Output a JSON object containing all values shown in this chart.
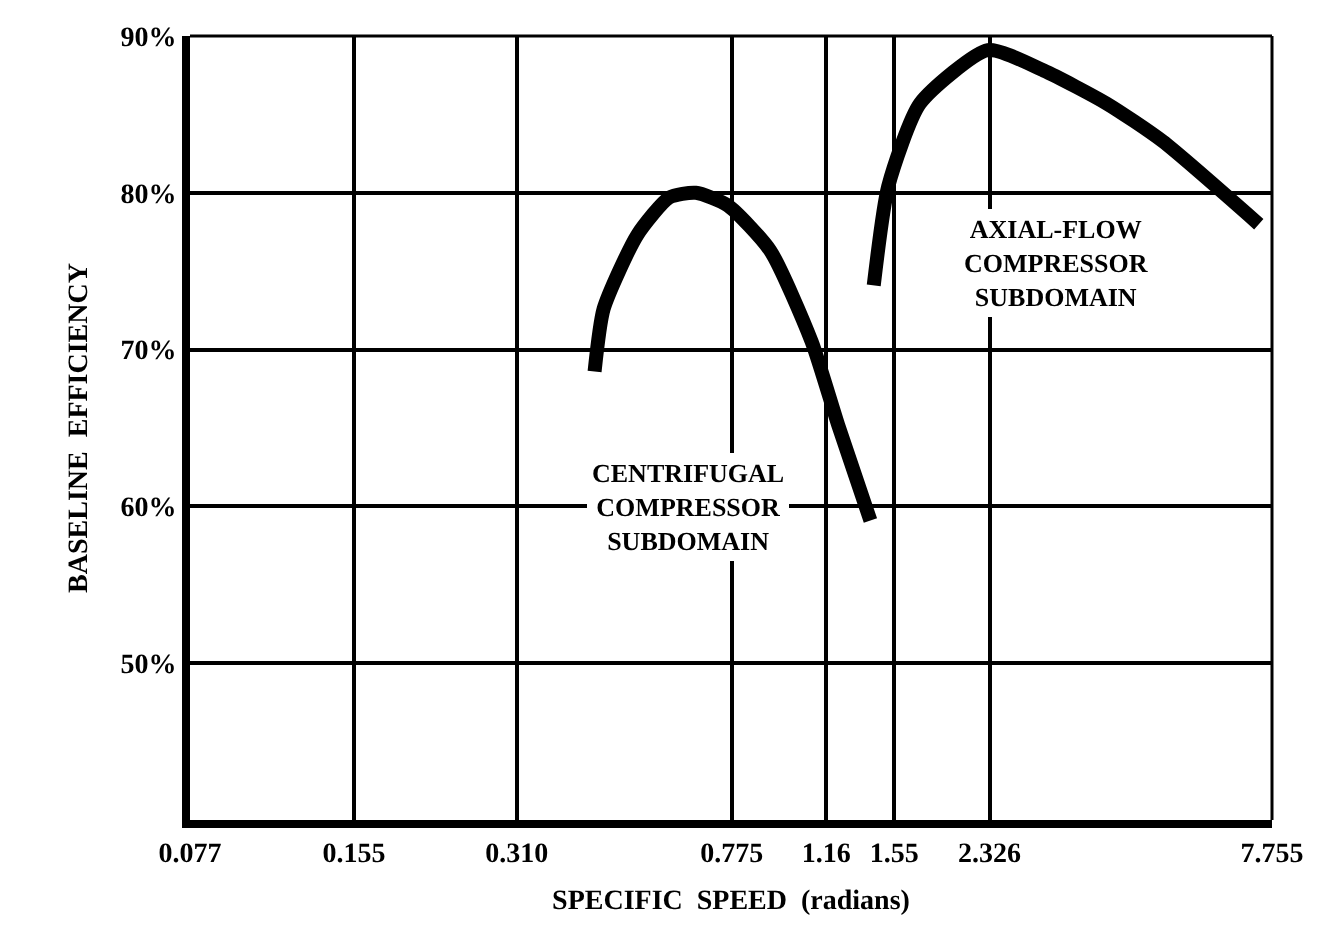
{
  "chart_data": {
    "type": "line",
    "xlabel": "SPECIFIC  SPEED  (radians)",
    "ylabel": "BASELINE  EFFICIENCY",
    "log": "x",
    "grid": true,
    "xlim": [
      0.077,
      7.755
    ],
    "ylim": [
      40,
      90
    ],
    "xticks": [
      0.077,
      0.155,
      {
        "value": 0.31,
        "label": "0.310"
      },
      0.775,
      1.16,
      1.55,
      2.326,
      7.755
    ],
    "yticks": [
      {
        "value": 50,
        "label": "50%"
      },
      {
        "value": 60,
        "label": "60%"
      },
      {
        "value": 70,
        "label": "70%"
      },
      {
        "value": 80,
        "label": "80%"
      },
      {
        "value": 90,
        "label": "90%"
      }
    ],
    "series": [
      {
        "color": "#000000",
        "x": [
          0.432,
          0.449,
          0.518,
          0.594,
          0.665,
          0.762,
          0.914,
          1.09,
          1.22,
          1.4
        ],
        "values": [
          68.6,
          72.6,
          77.3,
          79.7,
          80.0,
          79.2,
          76.3,
          70.5,
          65.2,
          59.1
        ]
      },
      {
        "color": "#000000",
        "x": [
          1.42,
          1.51,
          1.73,
          2.31,
          2.93,
          3.83,
          4.86,
          7.33
        ],
        "values": [
          74.1,
          80.4,
          85.7,
          89.1,
          87.8,
          85.7,
          83.3,
          78.0
        ]
      }
    ],
    "annotations": [
      "CENTRIFUGAL\nCOMPRESSOR\nSUBDOMAIN",
      "AXIAL-FLOW\nCOMPRESSOR\nSUBDOMAIN"
    ]
  }
}
